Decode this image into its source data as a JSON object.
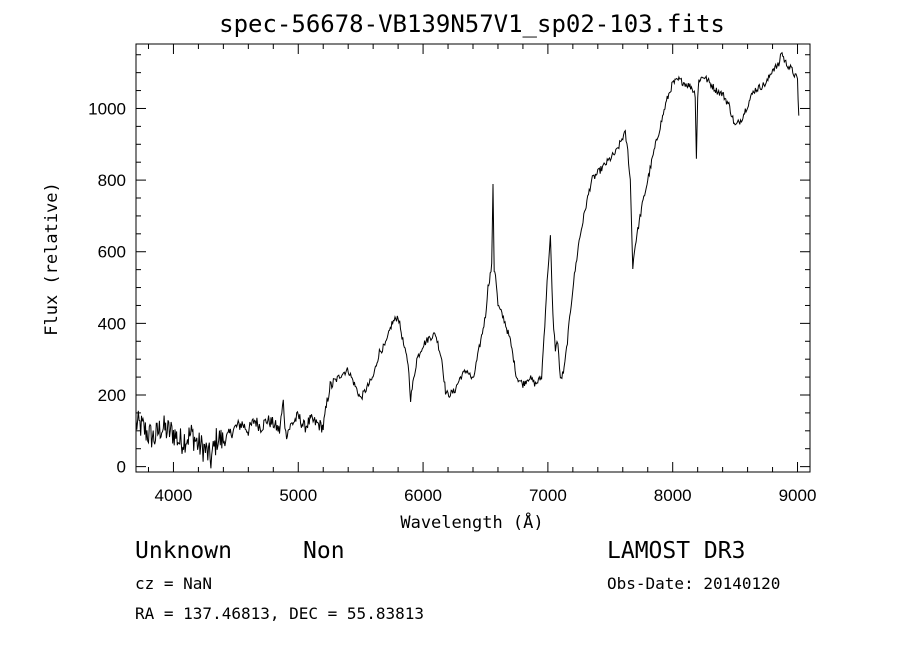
{
  "chart_data": {
    "type": "line",
    "title": "spec-56678-VB139N57V1_sp02-103.fits",
    "xlabel": "Wavelength (Å)",
    "ylabel": "Flux (relative)",
    "xlim": [
      3700,
      9100
    ],
    "ylim": [
      -15,
      1180
    ],
    "x_ticks": [
      4000,
      5000,
      6000,
      7000,
      8000,
      9000
    ],
    "y_ticks": [
      0,
      200,
      400,
      600,
      800,
      1000
    ],
    "grid": false,
    "series": [
      {
        "x": [
          3700,
          3750,
          3800,
          3850,
          3900,
          3950,
          4000,
          4050,
          4100,
          4150,
          4200,
          4250,
          4300,
          4350,
          4400,
          4450,
          4500,
          4550,
          4600,
          4650,
          4700,
          4750,
          4800,
          4850,
          4880,
          4900,
          4950,
          5000,
          5050,
          5100,
          5150,
          5200,
          5250,
          5300,
          5350,
          5400,
          5450,
          5500,
          5550,
          5600,
          5650,
          5700,
          5750,
          5800,
          5850,
          5880,
          5900,
          5950,
          6000,
          6050,
          6100,
          6150,
          6180,
          6200,
          6250,
          6300,
          6350,
          6400,
          6450,
          6500,
          6520,
          6550,
          6560,
          6570,
          6580,
          6600,
          6650,
          6700,
          6750,
          6800,
          6850,
          6900,
          6950,
          7000,
          7020,
          7040,
          7060,
          7080,
          7100,
          7130,
          7150,
          7200,
          7250,
          7300,
          7350,
          7400,
          7450,
          7500,
          7550,
          7600,
          7620,
          7640,
          7660,
          7680,
          7700,
          7720,
          7750,
          7800,
          7850,
          7900,
          7950,
          8000,
          8050,
          8100,
          8150,
          8180,
          8190,
          8200,
          8210,
          8250,
          8300,
          8350,
          8400,
          8450,
          8500,
          8550,
          8600,
          8650,
          8700,
          8750,
          8800,
          8850,
          8870,
          8900,
          8950,
          9000,
          9010
        ],
        "y": [
          120,
          110,
          90,
          80,
          110,
          100,
          95,
          70,
          80,
          90,
          60,
          50,
          20,
          80,
          70,
          90,
          110,
          120,
          100,
          130,
          110,
          130,
          120,
          100,
          180,
          90,
          120,
          140,
          110,
          130,
          120,
          110,
          220,
          240,
          260,
          270,
          230,
          190,
          220,
          250,
          320,
          340,
          400,
          420,
          330,
          290,
          190,
          300,
          340,
          360,
          370,
          300,
          210,
          200,
          210,
          250,
          270,
          240,
          330,
          420,
          500,
          560,
          780,
          550,
          540,
          450,
          410,
          350,
          250,
          230,
          250,
          230,
          250,
          550,
          640,
          420,
          330,
          350,
          240,
          270,
          330,
          500,
          630,
          720,
          800,
          820,
          840,
          860,
          880,
          920,
          930,
          880,
          800,
          560,
          620,
          660,
          720,
          800,
          880,
          950,
          1020,
          1070,
          1080,
          1070,
          1060,
          1040,
          860,
          1030,
          1080,
          1090,
          1070,
          1050,
          1040,
          1010,
          950,
          970,
          1010,
          1050,
          1060,
          1070,
          1110,
          1120,
          1160,
          1130,
          1110,
          1080,
          980
        ]
      }
    ]
  },
  "info": {
    "object_class": "Unknown",
    "subclass": "Non",
    "survey": "LAMOST DR3",
    "cz": "cz = NaN",
    "obs_date": "Obs-Date: 20140120",
    "coords": "RA = 137.46813, DEC =  55.83813"
  }
}
